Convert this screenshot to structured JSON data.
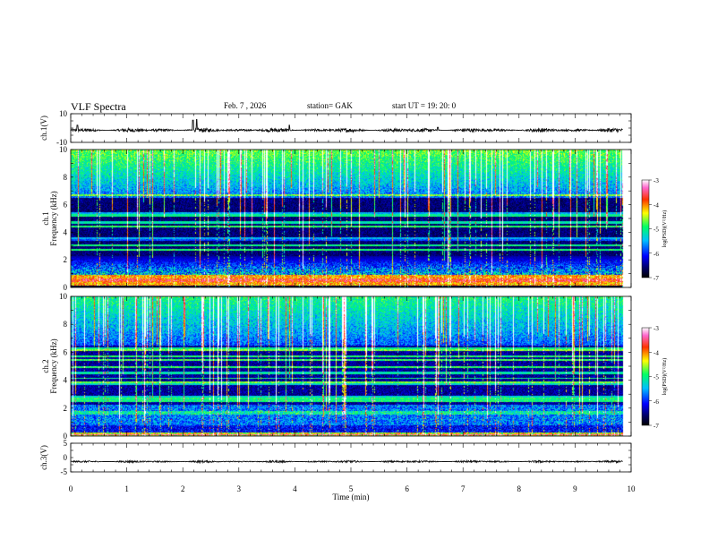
{
  "header": {
    "title": "VLF Spectra",
    "date": "Feb. 7 , 2026",
    "station": "station= GAK",
    "start": "start UT = 19: 20: 0"
  },
  "chart_data": [
    {
      "type": "line",
      "panel": "ch1-waveform",
      "ylabel": "ch.1(V)",
      "ylim": [
        -10,
        10
      ],
      "yticks": [
        -10,
        10
      ],
      "xlim": [
        0,
        10
      ],
      "x_extent_min": [
        0,
        9.85
      ],
      "baseline_v": -1.5,
      "noise_amplitude_v": 1.5,
      "spikes": [
        {
          "x": 2.18,
          "v": 5.5
        },
        {
          "x": 2.25,
          "v": 6.0
        },
        {
          "x": 3.9,
          "v": 2.0
        },
        {
          "x": 6.55,
          "v": 0.5
        },
        {
          "x": 0.12,
          "v": 2.0
        }
      ]
    },
    {
      "type": "heatmap",
      "panel": "ch1-spectrogram",
      "ylabel": "Frequency (kHz)",
      "ylabel_prefix": "ch.1",
      "ylim": [
        0,
        10
      ],
      "yticks": [
        0,
        2,
        4,
        6,
        8,
        10
      ],
      "xlim": [
        0,
        10
      ],
      "data_extent_min": [
        0,
        9.85
      ],
      "colorbar": {
        "label": "log(PSD)(V²/Hz)",
        "range": [
          -7,
          -3
        ],
        "ticks": [
          -3,
          -4,
          -5,
          -6,
          -7
        ]
      },
      "features": {
        "strong_band_khz": [
          0.2,
          1.0
        ],
        "dark_gap_khz": [
          0.0,
          0.2
        ],
        "sferic_band_khz": [
          6.5,
          10
        ],
        "diffuse_band_khz": [
          1.0,
          2.5
        ]
      }
    },
    {
      "type": "heatmap",
      "panel": "ch2-spectrogram",
      "ylabel": "Frequency (kHz)",
      "ylabel_prefix": "ch.2",
      "ylim": [
        0,
        10
      ],
      "yticks": [
        0,
        2,
        4,
        6,
        8,
        10
      ],
      "xlim": [
        0,
        10
      ],
      "data_extent_min": [
        0,
        9.85
      ],
      "colorbar": {
        "label": "log(PSD)(V²/Hz)",
        "range": [
          -7,
          -3
        ],
        "ticks": [
          -3,
          -4,
          -5,
          -6,
          -7
        ]
      },
      "features": {
        "strong_band_khz": [
          0.0,
          0.3
        ],
        "sferic_band_khz": [
          6.5,
          10
        ],
        "diffuse_band_khz": [
          0.8,
          2.4
        ]
      }
    },
    {
      "type": "line",
      "panel": "ch3-waveform",
      "ylabel": "ch.3(V)",
      "ylim": [
        -5,
        5
      ],
      "yticks": [
        -5,
        0,
        5
      ],
      "xlim": [
        0,
        10
      ],
      "x_extent_min": [
        0,
        9.85
      ],
      "baseline_v": -1.4,
      "noise_amplitude_v": 0.4
    }
  ],
  "x_axis": {
    "label": "Time (min)",
    "ticks": [
      0,
      1,
      2,
      3,
      4,
      5,
      6,
      7,
      8,
      9,
      10
    ]
  }
}
